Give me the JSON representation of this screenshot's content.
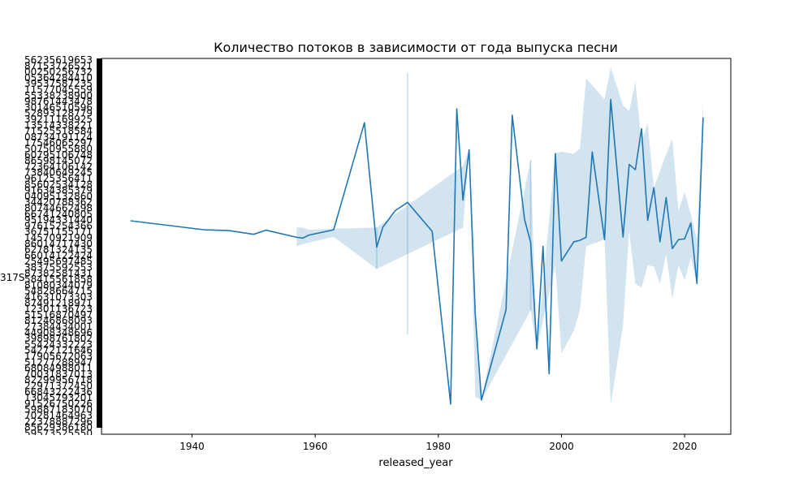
{
  "chart_data": {
    "type": "line",
    "title": "Количество потоков в зависимости от года выпуска песни",
    "xlabel": "released_year",
    "ylabel": "",
    "xlim": [
      1925.3,
      2027.5
    ],
    "ylim": [
      0,
      100
    ],
    "x_ticks": [
      1940,
      1960,
      1980,
      2000,
      2020
    ],
    "y_ticklabels_note": "overlapping unreadable categorical stream-count labels",
    "y_readable_fragment": "317S",
    "grid": false,
    "legend": "none",
    "line_color": "#1f77b4",
    "band_color": "#1f77b4",
    "series": [
      {
        "x": [
          1930,
          1942,
          1946,
          1950,
          1952,
          1957,
          1958,
          1959,
          1963,
          1968,
          1970,
          1971,
          1973,
          1975,
          1979,
          1982,
          1983,
          1984,
          1985,
          1986,
          1987,
          1991,
          1992,
          1994,
          1995,
          1996,
          1997,
          1998,
          1999,
          2000,
          2002,
          2003,
          2004,
          2005,
          2007,
          2008,
          2010,
          2011,
          2012,
          2013,
          2014,
          2015,
          2016,
          2017,
          2018,
          2019,
          2020,
          2021,
          2022,
          2023
        ],
        "y": [
          56.8,
          54.4,
          54.2,
          53.2,
          54.3,
          52.4,
          52.2,
          53.0,
          54.4,
          82.9,
          49.8,
          55.1,
          59.5,
          61.7,
          54.0,
          8.0,
          86.6,
          62.3,
          75.7,
          32.0,
          9.1,
          33.1,
          84.9,
          57.2,
          51.0,
          22.7,
          50.0,
          16.1,
          74.7,
          46.1,
          51.2,
          51.6,
          52.4,
          75.1,
          51.8,
          89.1,
          52.5,
          71.8,
          70.4,
          81.3,
          56.9,
          65.6,
          51.2,
          63.0,
          49.4,
          51.8,
          52.0,
          56.2,
          40.1,
          84.3
        ]
      }
    ],
    "confidence_band": {
      "x": [
        1957,
        1958,
        1959,
        1963,
        1970,
        1984,
        1985,
        1986,
        1987,
        1995,
        1996,
        1999,
        2000,
        2002,
        2003,
        2004,
        2007,
        2008,
        2010,
        2011,
        2012,
        2013,
        2014,
        2015,
        2016,
        2017,
        2018,
        2019,
        2020,
        2021,
        2022,
        2023
      ],
      "lower": [
        50.0,
        50.6,
        51.0,
        52.5,
        44.0,
        55.0,
        75.7,
        10.0,
        9.1,
        33.0,
        22.7,
        45.0,
        21.5,
        27.5,
        33.0,
        50.0,
        51.8,
        7.8,
        29.0,
        54.0,
        40.0,
        39.0,
        45.0,
        44.6,
        40.0,
        48.0,
        36.0,
        45.0,
        41.0,
        47.0,
        40.1,
        84.3
      ],
      "upper": [
        55.0,
        55.0,
        54.4,
        54.7,
        55.0,
        71.4,
        75.7,
        32.0,
        9.1,
        73.0,
        22.7,
        74.7,
        75.2,
        74.6,
        76.0,
        94.7,
        89.1,
        97.6,
        87.5,
        86.0,
        93.7,
        77.9,
        82.8,
        65.6,
        70.0,
        74.5,
        78.5,
        59.3,
        64.5,
        58.5,
        52.0,
        88.5
      ]
    },
    "vertical_spikes": [
      {
        "x": 1970,
        "low": 44.0,
        "high": 55.0
      },
      {
        "x": 1975,
        "low": 26.5,
        "high": 96.2
      },
      {
        "x": 1995,
        "low": 33.0,
        "high": 73.0
      }
    ]
  }
}
